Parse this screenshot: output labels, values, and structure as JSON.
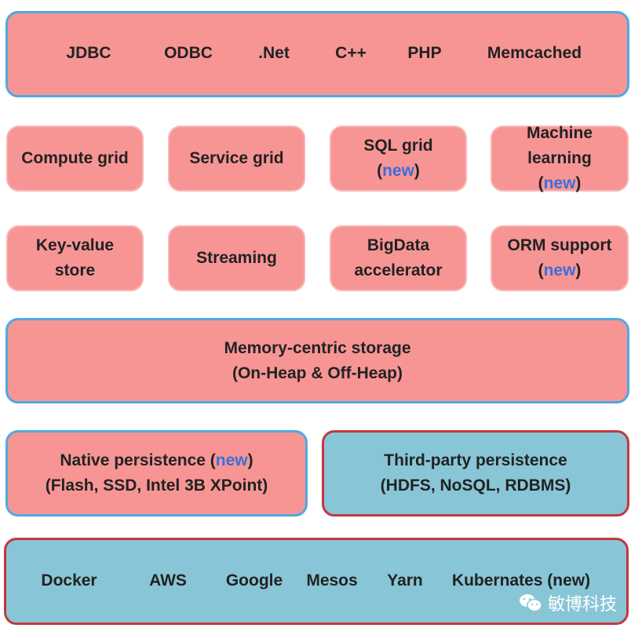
{
  "colors": {
    "pink": "#f79595",
    "teal": "#88c6d7",
    "blue_border": "#4fa9e2",
    "red_border": "#c2383e",
    "new_text": "#3a6fd8"
  },
  "apis": {
    "items": [
      "JDBC",
      "ODBC",
      ".Net",
      "C++",
      "PHP",
      "Memcached"
    ]
  },
  "row1": [
    {
      "line1": "Compute grid"
    },
    {
      "line1": "Service grid"
    },
    {
      "line1": "SQL grid",
      "open": "(",
      "new": "new",
      "close": ")"
    },
    {
      "line1": "Machine",
      "line2": "learning",
      "open": "(",
      "new": "new",
      "close": ")"
    }
  ],
  "row2": [
    {
      "line1": "Key-value",
      "line2": "store"
    },
    {
      "line1": "Streaming"
    },
    {
      "line1": "BigData",
      "line2": "accelerator"
    },
    {
      "line1": "ORM support",
      "open": "(",
      "new": "new",
      "close": ")"
    }
  ],
  "storage": {
    "line1": "Memory-centric storage",
    "line2": "(On-Heap & Off-Heap)"
  },
  "native": {
    "line1": "Native persistence (",
    "new": "new",
    "close": ")",
    "line2": "(Flash, SSD, Intel 3B XPoint)"
  },
  "third": {
    "line1": "Third-party persistence",
    "line2": "(HDFS, NoSQL, RDBMS)"
  },
  "platforms": {
    "items": [
      "Docker",
      "AWS",
      "Google",
      "Mesos",
      "Yarn",
      "Kubernates (new)"
    ]
  },
  "watermark": {
    "text": "敏博科技",
    "icon": "wechat-icon"
  }
}
